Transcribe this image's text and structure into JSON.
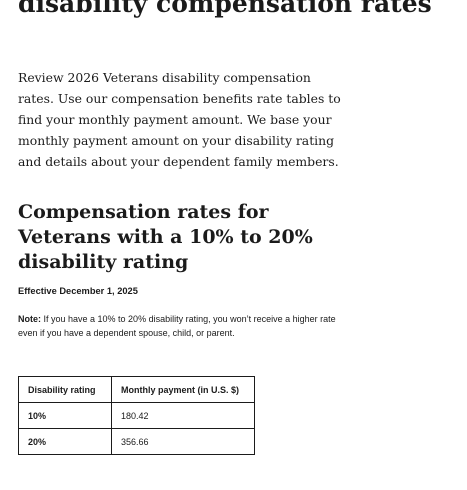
{
  "page": {
    "title": "disability compensation rates",
    "intro": "Review 2026 Veterans disability compensation rates. Use our compensation benefits rate tables to find your monthly payment amount. We base your monthly payment amount on your disability rating and details about your dependent family members."
  },
  "section": {
    "title": "Compensation rates for Veterans with a 10% to 20% disability rating",
    "effective": "Effective December 1, 2025",
    "note_label": "Note:",
    "note_text": " If you have a 10% to 20% disability rating, you won’t receive a higher rate even if you have a dependent spouse, child, or parent."
  },
  "table": {
    "headers": [
      "Disability rating",
      "Monthly payment (in U.S. $)"
    ],
    "rows": [
      {
        "rating": "10%",
        "payment": "180.42"
      },
      {
        "rating": "20%",
        "payment": "356.66"
      }
    ]
  }
}
